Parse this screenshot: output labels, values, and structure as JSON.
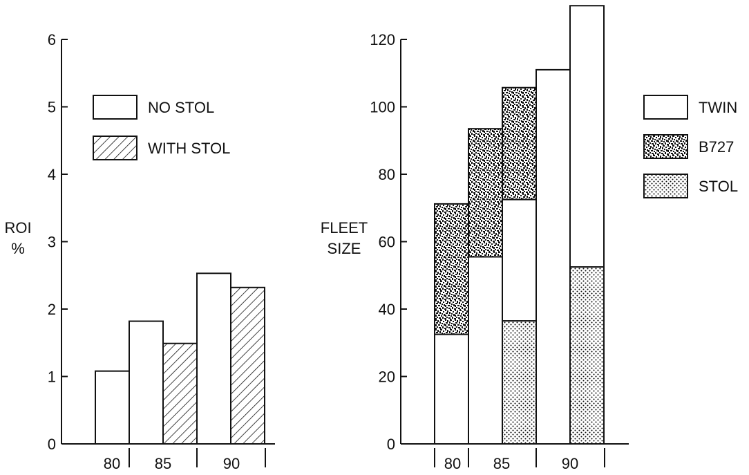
{
  "colors": {
    "ink": "#111111",
    "background": "#ffffff",
    "twin_fill": "#ffffff",
    "b727_pattern": "dense-speckle",
    "stol_pattern": "dots",
    "with_stol_pattern": "diagonal-hatch"
  },
  "chart_data": [
    {
      "type": "bar",
      "ylabel_lines": [
        "ROI",
        "%"
      ],
      "ylim": [
        0,
        6
      ],
      "yticks": [
        "0",
        "1",
        "2",
        "3",
        "4",
        "5",
        "6"
      ],
      "x_tick_labels": [
        "80",
        "85",
        "90"
      ],
      "grid": false,
      "legend_position": "top-center",
      "legend": [
        {
          "label": "NO STOL",
          "pattern": "plain"
        },
        {
          "label": "WITH STOL",
          "pattern": "diagonal-hatch"
        }
      ],
      "bars": [
        {
          "year": "80",
          "series": "NO STOL",
          "value": 1.08
        },
        {
          "year": "85",
          "series": "NO STOL",
          "value": 1.82
        },
        {
          "year": "85",
          "series": "WITH STOL",
          "value": 1.49
        },
        {
          "year": "90",
          "series": "NO STOL",
          "value": 2.53
        },
        {
          "year": "90",
          "series": "WITH STOL",
          "value": 2.32
        }
      ]
    },
    {
      "type": "bar",
      "stacked": true,
      "ylabel_lines": [
        "FLEET",
        "SIZE"
      ],
      "ylim": [
        0,
        120
      ],
      "yticks": [
        "0",
        "20",
        "40",
        "60",
        "80",
        "100",
        "120"
      ],
      "x_tick_labels": [
        "80",
        "85",
        "90"
      ],
      "grid": false,
      "legend_position": "right",
      "legend": [
        {
          "label": "TWIN",
          "pattern": "plain"
        },
        {
          "label": "B727",
          "pattern": "dense-speckle"
        },
        {
          "label": "STOL",
          "pattern": "dots"
        }
      ],
      "bars": [
        {
          "year": "80",
          "segments": [
            {
              "series": "TWIN",
              "value": 32.5
            },
            {
              "series": "B727",
              "value": 38.7
            }
          ]
        },
        {
          "year": "85",
          "segments": [
            {
              "series": "TWIN",
              "value": 55.5
            },
            {
              "series": "B727",
              "value": 38.0
            }
          ]
        },
        {
          "year": "85",
          "segments": [
            {
              "series": "STOL",
              "value": 36.5
            },
            {
              "series": "TWIN",
              "value": 36.0
            },
            {
              "series": "B727",
              "value": 33.2
            }
          ]
        },
        {
          "year": "90",
          "segments": [
            {
              "series": "TWIN",
              "value": 111.0
            }
          ]
        },
        {
          "year": "90",
          "segments": [
            {
              "series": "STOL",
              "value": 52.5
            },
            {
              "series": "TWIN",
              "value": 77.5
            }
          ]
        }
      ]
    }
  ]
}
